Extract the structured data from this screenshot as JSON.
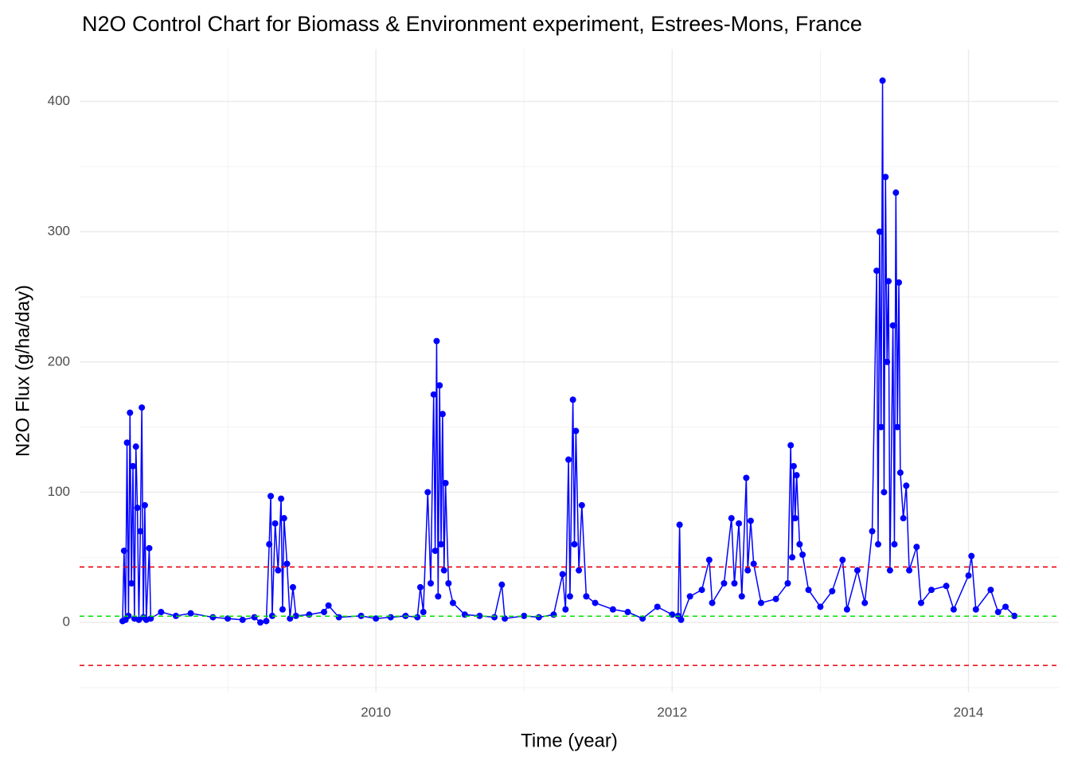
{
  "chart_data": {
    "type": "line",
    "title": "N2O Control Chart for Biomass & Environment experiment, Estrees-Mons, France",
    "x_label": "Time (year)",
    "y_label": "N2O Flux (g/ha/day)",
    "xlim": [
      2008.0,
      2014.61
    ],
    "ylim": [
      -53.7,
      440
    ],
    "xticks": [
      2010,
      2012,
      2014
    ],
    "x_minor_grid": [
      2009,
      2011,
      2013
    ],
    "yticks": [
      0,
      100,
      200,
      300,
      400
    ],
    "y_minor_grid": [
      -50,
      50,
      150,
      250,
      350
    ],
    "grid": true,
    "reference_lines": [
      {
        "value": 42.6,
        "color": "#e8000b",
        "dash": true
      },
      {
        "value": 4.8,
        "color": "#00e000",
        "dash": true
      },
      {
        "value": -33,
        "color": "#e8000b",
        "dash": true
      }
    ],
    "x": [
      2008.29,
      2008.3,
      2008.31,
      2008.32,
      2008.33,
      2008.34,
      2008.35,
      2008.36,
      2008.37,
      2008.38,
      2008.39,
      2008.4,
      2008.41,
      2008.42,
      2008.43,
      2008.44,
      2008.45,
      2008.47,
      2008.48,
      2008.55,
      2008.65,
      2008.75,
      2008.9,
      2009.0,
      2009.1,
      2009.18,
      2009.22,
      2009.26,
      2009.28,
      2009.29,
      2009.3,
      2009.32,
      2009.34,
      2009.36,
      2009.37,
      2009.38,
      2009.4,
      2009.42,
      2009.44,
      2009.46,
      2009.55,
      2009.65,
      2009.68,
      2009.75,
      2009.9,
      2010.0,
      2010.1,
      2010.2,
      2010.28,
      2010.3,
      2010.32,
      2010.35,
      2010.37,
      2010.39,
      2010.4,
      2010.41,
      2010.42,
      2010.43,
      2010.44,
      2010.45,
      2010.46,
      2010.47,
      2010.49,
      2010.52,
      2010.6,
      2010.7,
      2010.8,
      2010.85,
      2010.87,
      2011.0,
      2011.1,
      2011.2,
      2011.26,
      2011.28,
      2011.3,
      2011.31,
      2011.33,
      2011.34,
      2011.35,
      2011.37,
      2011.39,
      2011.42,
      2011.48,
      2011.6,
      2011.7,
      2011.8,
      2011.9,
      2012.0,
      2012.04,
      2012.05,
      2012.06,
      2012.12,
      2012.2,
      2012.25,
      2012.27,
      2012.35,
      2012.4,
      2012.42,
      2012.45,
      2012.47,
      2012.5,
      2012.51,
      2012.53,
      2012.55,
      2012.6,
      2012.7,
      2012.78,
      2012.8,
      2012.81,
      2012.82,
      2012.83,
      2012.84,
      2012.86,
      2012.88,
      2012.92,
      2013.0,
      2013.08,
      2013.15,
      2013.18,
      2013.25,
      2013.3,
      2013.35,
      2013.38,
      2013.39,
      2013.4,
      2013.41,
      2013.42,
      2013.43,
      2013.44,
      2013.45,
      2013.46,
      2013.47,
      2013.49,
      2013.5,
      2013.51,
      2013.52,
      2013.53,
      2013.54,
      2013.56,
      2013.58,
      2013.6,
      2013.65,
      2013.68,
      2013.75,
      2013.85,
      2013.9,
      2014.0,
      2014.02,
      2014.05,
      2014.15,
      2014.2,
      2014.25,
      2014.31
    ],
    "series": [
      {
        "color": "#0000ff",
        "values": [
          1,
          55,
          2,
          138,
          5,
          161,
          30,
          120,
          3,
          135,
          88,
          2,
          70,
          165,
          4,
          90,
          2,
          57,
          3,
          8,
          5,
          7,
          4,
          3,
          2,
          4,
          0,
          1,
          60,
          97,
          5,
          76,
          40,
          95,
          10,
          80,
          45,
          3,
          27,
          5,
          6,
          8,
          13,
          4,
          5,
          3,
          4,
          5,
          4,
          27,
          8,
          100,
          30,
          175,
          55,
          216,
          20,
          182,
          60,
          160,
          40,
          107,
          30,
          15,
          6,
          5,
          4,
          29,
          3,
          5,
          4,
          6,
          37,
          10,
          125,
          20,
          171,
          60,
          147,
          40,
          90,
          20,
          15,
          10,
          8,
          3,
          12,
          6,
          5,
          75,
          2,
          20,
          25,
          48,
          15,
          30,
          80,
          30,
          76,
          20,
          111,
          40,
          78,
          45,
          15,
          18,
          30,
          136,
          50,
          120,
          80,
          113,
          60,
          52,
          25,
          12,
          24,
          48,
          10,
          40,
          15,
          70,
          270,
          60,
          300,
          150,
          416,
          100,
          342,
          200,
          262,
          40,
          228,
          60,
          330,
          150,
          261,
          115,
          80,
          105,
          40,
          58,
          15,
          25,
          28,
          10,
          36,
          51,
          10,
          25,
          8,
          12,
          5
        ]
      }
    ]
  }
}
